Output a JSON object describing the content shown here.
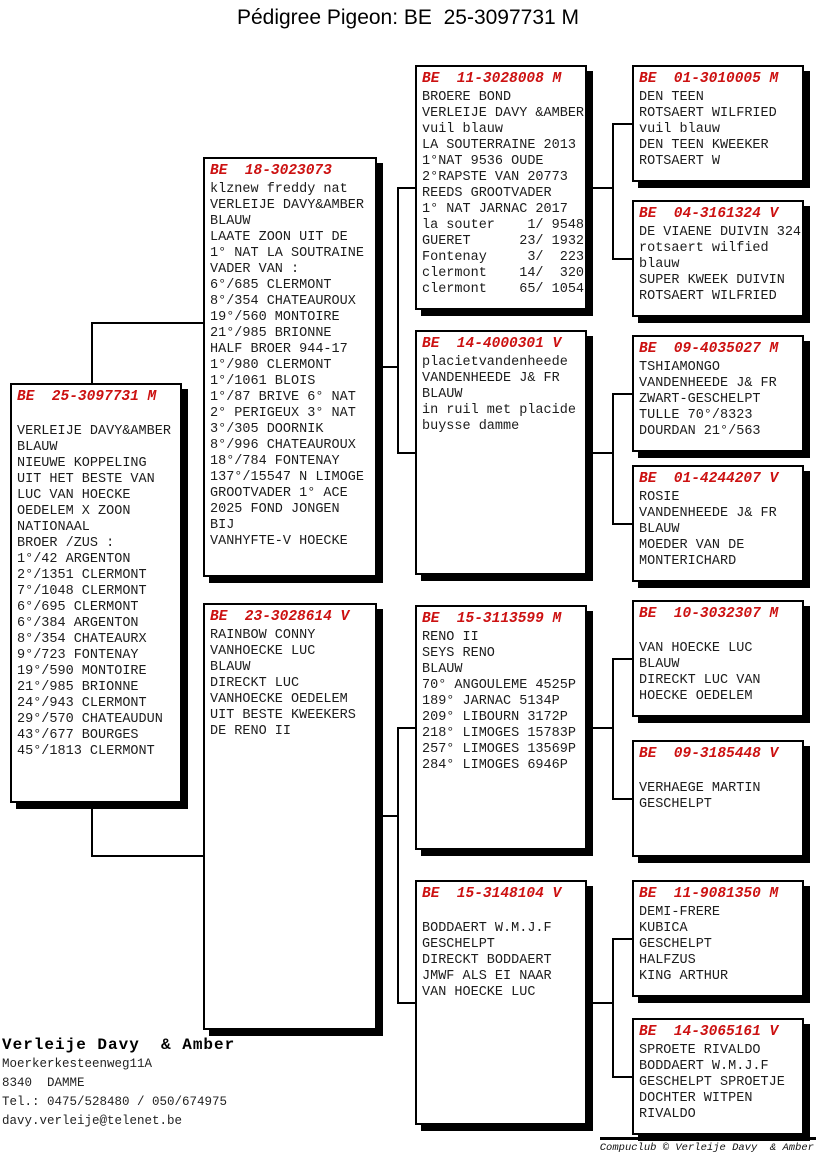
{
  "title": "Pédigree Pigeon: BE  25-3097731 M",
  "colors": {
    "ring": "#cc1111",
    "line": "#000000",
    "box_bg": "#ffffff"
  },
  "boxes": {
    "subject": {
      "ring": "BE  25-3097731 M",
      "lines": [
        "",
        "VERLEIJE DAVY&AMBER",
        "BLAUW",
        "NIEUWE KOPPELING",
        "UIT HET BESTE VAN",
        "LUC VAN HOECKE",
        "OEDELEM X ZOON",
        "NATIONAAL",
        "BROER /ZUS :",
        "1°/42 ARGENTON",
        "2°/1351 CLERMONT",
        "7°/1048 CLERMONT",
        "6°/695 CLERMONT",
        "6°/384 ARGENTON",
        "8°/354 CHATEAURX",
        "9°/723 FONTENAY",
        "19°/590 MONTOIRE",
        "21°/985 BRIONNE",
        "24°/943 CLERMONT",
        "29°/570 CHATEAUDUN",
        "43°/677 BOURGES",
        "45°/1813 CLERMONT"
      ]
    },
    "sire": {
      "ring": "BE  18-3023073",
      "lines": [
        "klznew freddy nat",
        "VERLEIJE DAVY&AMBER",
        "BLAUW",
        "LAATE ZOON UIT DE",
        "1° NAT LA SOUTRAINE",
        "VADER VAN :",
        "6°/685 CLERMONT",
        "8°/354 CHATEAUROUX",
        "19°/560 MONTOIRE",
        "21°/985 BRIONNE",
        "HALF BROER 944-17",
        "1°/980 CLERMONT",
        "1°/1061 BLOIS",
        "1°/87 BRIVE 6° NAT",
        "2° PERIGEUX 3° NAT",
        "3°/305 DOORNIK",
        "8°/996 CHATEAUROUX",
        "18°/784 FONTENAY",
        "137°/15547 N LIMOGE",
        "GROOTVADER 1° ACE",
        "2025 FOND JONGEN",
        "BIJ",
        "VANHYFTE-V HOECKE"
      ]
    },
    "dam": {
      "ring": "BE  23-3028614 V",
      "lines": [
        "RAINBOW CONNY",
        "VANHOECKE LUC",
        "BLAUW",
        "DIRECKT LUC",
        "VANHOECKE OEDELEM",
        "UIT BESTE KWEEKERS",
        "DE RENO II"
      ]
    },
    "sire_sire": {
      "ring": "BE  11-3028008 M",
      "lines": [
        "BROERE BOND",
        "VERLEIJE DAVY &AMBER",
        "vuil blauw",
        "LA SOUTERRAINE 2013",
        "1°NAT 9536 OUDE",
        "2°RAPSTE VAN 20773",
        "REEDS GROOTVADER",
        "1° NAT JARNAC 2017",
        "la souter    1/ 9548",
        "GUERET      23/ 1932",
        "Fontenay     3/  223",
        "clermont    14/  320",
        "clermont    65/ 1054"
      ]
    },
    "sire_dam": {
      "ring": "BE  14-4000301 V",
      "lines": [
        "placietvandenheede",
        "VANDENHEEDE J& FR",
        "BLAUW",
        "in ruil met placide",
        "buysse damme"
      ]
    },
    "dam_sire": {
      "ring": "BE  15-3113599 M",
      "lines": [
        "RENO II",
        "SEYS RENO",
        "BLAUW",
        "70° ANGOULEME 4525P",
        "189° JARNAC 5134P",
        "209° LIBOURN 3172P",
        "218° LIMOGES 15783P",
        "257° LIMOGES 13569P",
        "284° LIMOGES 6946P"
      ]
    },
    "dam_dam": {
      "ring": "BE  15-3148104 V",
      "lines": [
        "",
        "BODDAERT W.M.J.F",
        "GESCHELPT",
        "DIRECKT BODDAERT",
        "JMWF ALS EI NAAR",
        "VAN HOECKE LUC"
      ]
    },
    "sire_sire_sire": {
      "ring": "BE  01-3010005 M",
      "lines": [
        "DEN TEEN",
        "ROTSAERT WILFRIED",
        "vuil blauw",
        "DEN TEEN KWEEKER",
        "ROTSAERT W"
      ]
    },
    "sire_sire_dam": {
      "ring": "BE  04-3161324 V",
      "lines": [
        "DE VIAENE DUIVIN 324",
        "rotsaert wilfied",
        "blauw",
        "SUPER KWEEK DUIVIN",
        "ROTSAERT WILFRIED"
      ]
    },
    "sire_dam_sire": {
      "ring": "BE  09-4035027 M",
      "lines": [
        "TSHIAMONGO",
        "VANDENHEEDE J& FR",
        "ZWART-GESCHELPT",
        "TULLE 70°/8323",
        "DOURDAN 21°/563"
      ]
    },
    "sire_dam_dam": {
      "ring": "BE  01-4244207 V",
      "lines": [
        "ROSIE",
        "VANDENHEEDE J& FR",
        "BLAUW",
        "MOEDER VAN DE",
        "MONTERICHARD"
      ]
    },
    "dam_sire_sire": {
      "ring": "BE  10-3032307 M",
      "lines": [
        "",
        "VAN HOECKE LUC",
        "BLAUW",
        "DIRECKT LUC VAN",
        "HOECKE OEDELEM"
      ]
    },
    "dam_sire_dam": {
      "ring": "BE  09-3185448 V",
      "lines": [
        "",
        "VERHAEGE MARTIN",
        "GESCHELPT"
      ]
    },
    "dam_dam_sire": {
      "ring": "BE  11-9081350 M",
      "lines": [
        "DEMI-FRERE",
        "KUBICA",
        "GESCHELPT",
        "HALFZUS",
        "KING ARTHUR"
      ]
    },
    "dam_dam_dam": {
      "ring": "BE  14-3065161 V",
      "lines": [
        "SPROETE RIVALDO",
        "BODDAERT W.M.J.F",
        "GESCHELPT SPROETJE",
        "DOCHTER WITPEN",
        "RIVALDO"
      ]
    }
  },
  "breeder": {
    "name": "Verleije Davy  & Amber",
    "address_line1": "Moerkerkesteenweg11A",
    "address_line2": "8340  DAMME",
    "phone": "Tel.: 0475/528480 / 050/674975",
    "email": "davy.verleije@telenet.be"
  },
  "footer": {
    "credit": "Compuclub © Verleije Davy  & Amber"
  }
}
